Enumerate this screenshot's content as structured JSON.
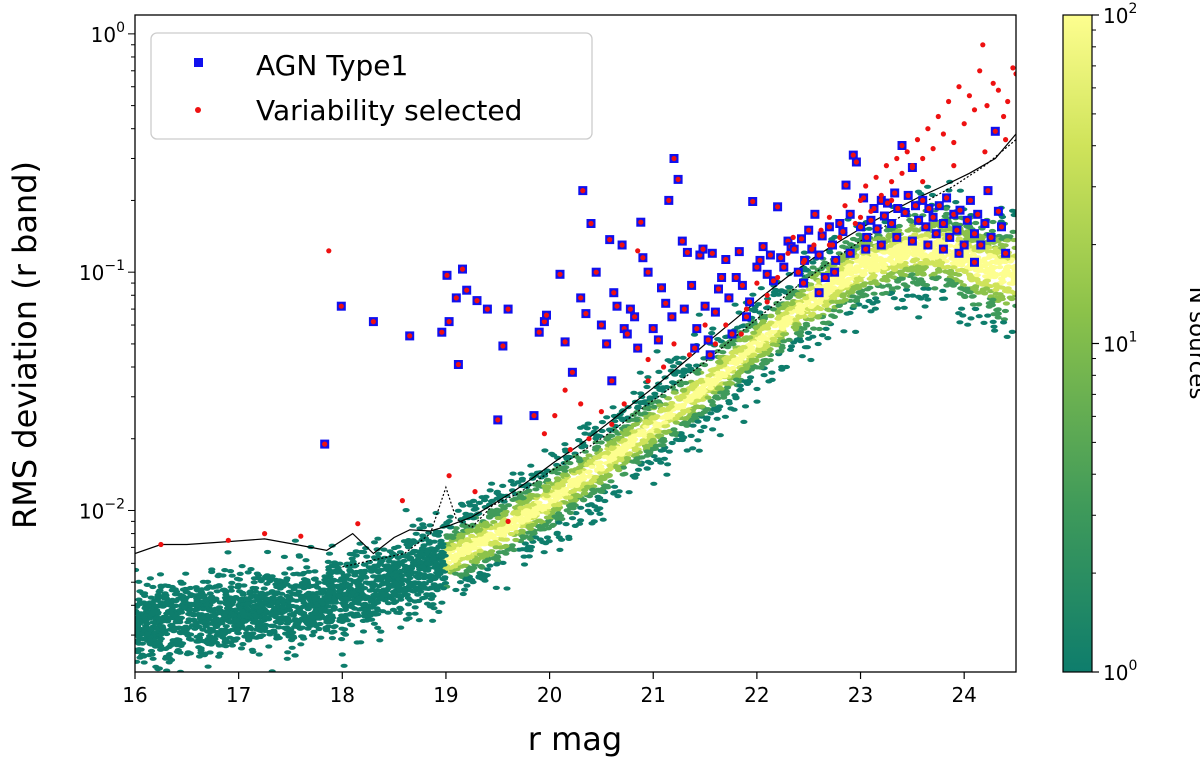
{
  "chart_data": {
    "type": "scatter",
    "title": "",
    "xlabel": "r mag",
    "ylabel": "RMS deviation (r  band)",
    "x_ticks": [
      "16",
      "17",
      "18",
      "19",
      "20",
      "21",
      "22",
      "23",
      "24"
    ],
    "y_ticks": [
      {
        "base": "10",
        "exp": "0",
        "value": 1
      },
      {
        "base": "10",
        "exp": "−1",
        "value": 0.1
      },
      {
        "base": "10",
        "exp": "−2",
        "value": 0.01
      }
    ],
    "xlim": [
      16,
      24.5
    ],
    "ylim": [
      0.0021,
      1.2
    ],
    "y_scale": "log",
    "grid": false,
    "legend": {
      "placement": "top-left",
      "entries": [
        {
          "label": "AGN Type1",
          "marker": "square",
          "color": "#1010ee"
        },
        {
          "label": "Variability selected",
          "marker": "dot",
          "color": "#ee1111"
        }
      ]
    },
    "colorbar": {
      "label": "N sources",
      "scale": "log",
      "min": 1,
      "max": 100,
      "ticks": [
        {
          "base": "10",
          "exp": "0",
          "value": 1
        },
        {
          "base": "10",
          "exp": "1",
          "value": 10
        },
        {
          "base": "10",
          "exp": "2",
          "value": 100
        }
      ],
      "colors": [
        "#0e7d6c",
        "#3f9a5a",
        "#8cc24a",
        "#cfe35a",
        "#fdfe8f"
      ]
    },
    "density_ridge": {
      "x": [
        16.0,
        16.5,
        17.0,
        17.5,
        18.0,
        18.5,
        19.0,
        19.5,
        20.0,
        20.5,
        21.0,
        21.5,
        22.0,
        22.5,
        23.0,
        23.5,
        23.8,
        24.1,
        24.4
      ],
      "y": [
        0.0033,
        0.0035,
        0.0037,
        0.004,
        0.0043,
        0.005,
        0.0062,
        0.008,
        0.011,
        0.0155,
        0.0225,
        0.033,
        0.05,
        0.075,
        0.105,
        0.125,
        0.125,
        0.11,
        0.1
      ]
    },
    "threshold_solid": {
      "x": [
        16.0,
        16.25,
        16.5,
        16.9,
        17.25,
        17.55,
        17.85,
        18.1,
        18.3,
        18.5,
        18.65,
        18.85,
        19.05,
        19.25,
        19.45,
        19.65,
        19.85,
        20.05,
        20.3,
        20.55,
        20.8,
        21.05,
        21.3,
        21.55,
        21.8,
        22.05,
        22.3,
        22.55,
        22.8,
        23.05,
        23.3,
        23.55,
        23.8,
        24.05,
        24.3,
        24.5
      ],
      "y": [
        0.0066,
        0.0072,
        0.0072,
        0.0074,
        0.0076,
        0.0072,
        0.0068,
        0.008,
        0.0066,
        0.0077,
        0.0083,
        0.0082,
        0.0087,
        0.0094,
        0.0106,
        0.012,
        0.0138,
        0.016,
        0.019,
        0.023,
        0.028,
        0.034,
        0.042,
        0.052,
        0.064,
        0.079,
        0.096,
        0.115,
        0.135,
        0.157,
        0.18,
        0.205,
        0.23,
        0.26,
        0.3,
        0.38
      ]
    },
    "threshold_dotted": {
      "x": [
        18.0,
        18.3,
        18.6,
        18.85,
        19.0,
        19.1,
        19.25,
        19.45,
        19.7,
        20.0,
        20.3,
        20.6,
        20.9,
        21.2,
        21.5,
        21.8,
        22.1,
        22.4,
        22.7,
        23.0,
        23.3,
        23.6,
        23.9,
        24.2,
        24.5
      ],
      "y": [
        0.0058,
        0.0062,
        0.0066,
        0.008,
        0.0125,
        0.0092,
        0.0085,
        0.0105,
        0.0118,
        0.0145,
        0.0175,
        0.0215,
        0.027,
        0.0335,
        0.042,
        0.054,
        0.069,
        0.088,
        0.11,
        0.135,
        0.162,
        0.195,
        0.23,
        0.28,
        0.36
      ]
    },
    "series_agn": {
      "name": "AGN Type1",
      "points": [
        [
          17.83,
          0.019
        ],
        [
          17.99,
          0.072
        ],
        [
          18.3,
          0.062
        ],
        [
          18.65,
          0.054
        ],
        [
          18.96,
          0.056
        ],
        [
          19.01,
          0.097
        ],
        [
          19.03,
          0.062
        ],
        [
          19.1,
          0.078
        ],
        [
          19.12,
          0.041
        ],
        [
          19.16,
          0.103
        ],
        [
          19.2,
          0.084
        ],
        [
          19.3,
          0.076
        ],
        [
          19.4,
          0.07
        ],
        [
          19.5,
          0.024
        ],
        [
          19.55,
          0.049
        ],
        [
          19.6,
          0.07
        ],
        [
          19.85,
          0.025
        ],
        [
          19.9,
          0.056
        ],
        [
          19.95,
          0.062
        ],
        [
          19.97,
          0.066
        ],
        [
          20.1,
          0.098
        ],
        [
          20.15,
          0.051
        ],
        [
          20.22,
          0.038
        ],
        [
          20.3,
          0.078
        ],
        [
          20.32,
          0.22
        ],
        [
          20.35,
          0.067
        ],
        [
          20.4,
          0.16
        ],
        [
          20.45,
          0.1
        ],
        [
          20.5,
          0.06
        ],
        [
          20.55,
          0.05
        ],
        [
          20.58,
          0.137
        ],
        [
          20.6,
          0.035
        ],
        [
          20.62,
          0.082
        ],
        [
          20.65,
          0.072
        ],
        [
          20.7,
          0.13
        ],
        [
          20.72,
          0.058
        ],
        [
          20.75,
          0.055
        ],
        [
          20.78,
          0.07
        ],
        [
          20.82,
          0.065
        ],
        [
          20.85,
          0.048
        ],
        [
          20.88,
          0.162
        ],
        [
          20.9,
          0.115
        ],
        [
          20.95,
          0.1
        ],
        [
          21.0,
          0.058
        ],
        [
          21.05,
          0.052
        ],
        [
          21.08,
          0.086
        ],
        [
          21.12,
          0.074
        ],
        [
          21.15,
          0.2
        ],
        [
          21.18,
          0.065
        ],
        [
          21.2,
          0.3
        ],
        [
          21.24,
          0.245
        ],
        [
          21.28,
          0.135
        ],
        [
          21.3,
          0.07
        ],
        [
          21.33,
          0.121
        ],
        [
          21.37,
          0.088
        ],
        [
          21.4,
          0.048
        ],
        [
          21.42,
          0.058
        ],
        [
          21.45,
          0.118
        ],
        [
          21.48,
          0.125
        ],
        [
          21.5,
          0.072
        ],
        [
          21.53,
          0.052
        ],
        [
          21.57,
          0.12
        ],
        [
          21.6,
          0.068
        ],
        [
          21.63,
          0.085
        ],
        [
          21.66,
          0.095
        ],
        [
          21.7,
          0.113
        ],
        [
          21.73,
          0.078
        ],
        [
          21.76,
          0.055
        ],
        [
          21.8,
          0.095
        ],
        [
          21.83,
          0.122
        ],
        [
          21.86,
          0.088
        ],
        [
          21.9,
          0.065
        ],
        [
          21.93,
          0.075
        ],
        [
          21.96,
          0.198
        ],
        [
          22.0,
          0.105
        ],
        [
          22.03,
          0.112
        ],
        [
          22.06,
          0.128
        ],
        [
          22.1,
          0.098
        ],
        [
          22.13,
          0.118
        ],
        [
          22.16,
          0.092
        ],
        [
          22.2,
          0.188
        ],
        [
          22.23,
          0.115
        ],
        [
          22.26,
          0.105
        ],
        [
          22.3,
          0.135
        ],
        [
          22.33,
          0.128
        ],
        [
          22.36,
          0.125
        ],
        [
          22.4,
          0.1
        ],
        [
          22.43,
          0.138
        ],
        [
          22.46,
          0.112
        ],
        [
          22.5,
          0.15
        ],
        [
          22.53,
          0.125
        ],
        [
          22.56,
          0.175
        ],
        [
          22.6,
          0.118
        ],
        [
          22.63,
          0.142
        ],
        [
          22.66,
          0.095
        ],
        [
          22.7,
          0.155
        ],
        [
          22.73,
          0.13
        ],
        [
          22.76,
          0.112
        ],
        [
          22.8,
          0.16
        ],
        [
          22.83,
          0.148
        ],
        [
          22.86,
          0.232
        ],
        [
          22.9,
          0.175
        ],
        [
          22.93,
          0.31
        ],
        [
          22.96,
          0.29
        ],
        [
          23.0,
          0.155
        ],
        [
          23.03,
          0.205
        ],
        [
          23.06,
          0.14
        ],
        [
          23.1,
          0.165
        ],
        [
          23.13,
          0.185
        ],
        [
          23.16,
          0.152
        ],
        [
          23.2,
          0.2
        ],
        [
          23.23,
          0.172
        ],
        [
          23.26,
          0.195
        ],
        [
          23.3,
          0.16
        ],
        [
          23.33,
          0.215
        ],
        [
          23.36,
          0.185
        ],
        [
          23.4,
          0.34
        ],
        [
          23.43,
          0.178
        ],
        [
          23.46,
          0.21
        ],
        [
          23.5,
          0.275
        ],
        [
          23.53,
          0.19
        ],
        [
          23.56,
          0.165
        ],
        [
          23.6,
          0.2
        ],
        [
          23.63,
          0.155
        ],
        [
          23.66,
          0.185
        ],
        [
          23.7,
          0.17
        ],
        [
          23.73,
          0.145
        ],
        [
          23.76,
          0.19
        ],
        [
          23.8,
          0.16
        ],
        [
          23.83,
          0.205
        ],
        [
          23.86,
          0.14
        ],
        [
          23.9,
          0.175
        ],
        [
          23.93,
          0.15
        ],
        [
          23.96,
          0.182
        ],
        [
          24.0,
          0.13
        ],
        [
          24.03,
          0.165
        ],
        [
          24.06,
          0.2
        ],
        [
          24.1,
          0.145
        ],
        [
          24.13,
          0.175
        ],
        [
          24.16,
          0.13
        ],
        [
          24.2,
          0.16
        ],
        [
          24.23,
          0.22
        ],
        [
          24.26,
          0.14
        ],
        [
          24.3,
          0.39
        ],
        [
          24.33,
          0.18
        ],
        [
          24.36,
          0.155
        ],
        [
          24.4,
          0.12
        ],
        [
          21.55,
          0.045
        ],
        [
          22.45,
          0.09
        ],
        [
          22.6,
          0.082
        ],
        [
          22.75,
          0.1
        ],
        [
          22.9,
          0.12
        ],
        [
          23.05,
          0.125
        ],
        [
          23.2,
          0.13
        ],
        [
          23.35,
          0.14
        ],
        [
          23.5,
          0.135
        ],
        [
          23.65,
          0.13
        ],
        [
          23.8,
          0.125
        ],
        [
          23.95,
          0.12
        ],
        [
          24.1,
          0.11
        ]
      ]
    },
    "series_variability": {
      "name": "Variability selected",
      "points": [
        [
          16.25,
          0.0072
        ],
        [
          16.9,
          0.0075
        ],
        [
          17.25,
          0.008
        ],
        [
          17.6,
          0.0078
        ],
        [
          17.87,
          0.123
        ],
        [
          18.15,
          0.0088
        ],
        [
          18.58,
          0.011
        ],
        [
          19.03,
          0.014
        ],
        [
          19.28,
          0.012
        ],
        [
          19.6,
          0.009
        ],
        [
          19.95,
          0.021
        ],
        [
          20.15,
          0.032
        ],
        [
          20.2,
          0.018
        ],
        [
          20.38,
          0.02
        ],
        [
          20.6,
          0.023
        ],
        [
          20.72,
          0.028
        ],
        [
          20.85,
          0.123
        ],
        [
          20.95,
          0.035
        ],
        [
          21.1,
          0.04
        ],
        [
          21.35,
          0.045
        ],
        [
          21.6,
          0.05
        ],
        [
          21.7,
          0.06
        ],
        [
          21.85,
          0.055
        ],
        [
          22.0,
          0.09
        ],
        [
          22.1,
          0.08
        ],
        [
          22.2,
          0.095
        ],
        [
          22.3,
          0.12
        ],
        [
          22.35,
          0.14
        ],
        [
          22.45,
          0.11
        ],
        [
          22.55,
          0.13
        ],
        [
          22.62,
          0.15
        ],
        [
          22.7,
          0.17
        ],
        [
          22.8,
          0.14
        ],
        [
          22.85,
          0.19
        ],
        [
          22.95,
          0.16
        ],
        [
          23.0,
          0.2
        ],
        [
          23.05,
          0.23
        ],
        [
          23.1,
          0.18
        ],
        [
          23.15,
          0.25
        ],
        [
          23.2,
          0.21
        ],
        [
          23.25,
          0.28
        ],
        [
          23.3,
          0.24
        ],
        [
          23.35,
          0.3
        ],
        [
          23.4,
          0.26
        ],
        [
          23.45,
          0.32
        ],
        [
          23.5,
          0.28
        ],
        [
          23.55,
          0.36
        ],
        [
          23.6,
          0.3
        ],
        [
          23.65,
          0.4
        ],
        [
          23.7,
          0.33
        ],
        [
          23.75,
          0.45
        ],
        [
          23.8,
          0.38
        ],
        [
          23.85,
          0.52
        ],
        [
          23.9,
          0.35
        ],
        [
          23.95,
          0.6
        ],
        [
          24.0,
          0.42
        ],
        [
          24.05,
          0.55
        ],
        [
          24.1,
          0.48
        ],
        [
          24.15,
          0.7
        ],
        [
          24.18,
          0.9
        ],
        [
          24.22,
          0.5
        ],
        [
          24.28,
          0.62
        ],
        [
          24.33,
          0.58
        ],
        [
          24.38,
          0.45
        ],
        [
          24.42,
          0.52
        ],
        [
          24.47,
          0.72
        ],
        [
          24.5,
          0.68
        ],
        [
          24.2,
          0.32
        ],
        [
          24.4,
          0.36
        ],
        [
          23.9,
          0.28
        ],
        [
          23.6,
          0.24
        ],
        [
          23.3,
          0.2
        ],
        [
          23.0,
          0.17
        ],
        [
          22.7,
          0.13
        ],
        [
          22.4,
          0.1
        ],
        [
          22.1,
          0.075
        ],
        [
          21.9,
          0.07
        ],
        [
          21.5,
          0.06
        ],
        [
          21.2,
          0.05
        ],
        [
          20.95,
          0.043
        ],
        [
          20.5,
          0.026
        ],
        [
          20.3,
          0.028
        ],
        [
          20.05,
          0.025
        ]
      ]
    }
  }
}
